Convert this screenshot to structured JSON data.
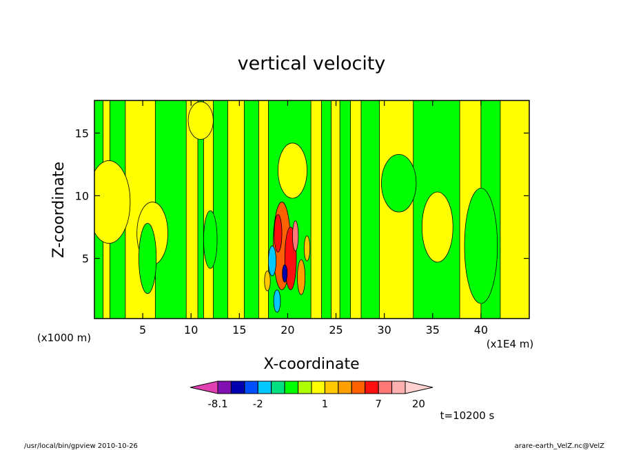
{
  "chart_data": {
    "type": "heatmap",
    "title": "vertical velocity",
    "xlabel": "X-coordinate",
    "ylabel": "Z-coordinate",
    "x_unit_note": "(x1E4 m)",
    "y_unit_note": "(x1000 m)",
    "xlim": [
      0,
      45
    ],
    "ylim": [
      0.2,
      17.6
    ],
    "x_ticks": [
      5,
      10,
      15,
      20,
      25,
      30,
      35,
      40
    ],
    "y_ticks": [
      5,
      10,
      15
    ],
    "colorbar": {
      "levels": [
        -8.1,
        -5,
        -3,
        -2,
        -1,
        -0.5,
        0,
        0.5,
        1,
        2,
        3,
        5,
        7,
        10,
        15,
        20
      ],
      "colors": [
        "#e040b0",
        "#8010b0",
        "#0000b0",
        "#0050ff",
        "#00c8ff",
        "#00e080",
        "#00ff00",
        "#b0ff00",
        "#ffff00",
        "#ffc800",
        "#ffa000",
        "#ff6000",
        "#ff1010",
        "#ff7878",
        "#ffb0b0",
        "#ffd0d0"
      ],
      "tick_labels": [
        "-8.1",
        "-2",
        "1",
        "7",
        "20"
      ],
      "tick_values": [
        -8.1,
        -2,
        1,
        7,
        20
      ]
    },
    "background_color": "#00ff00",
    "yellow_band_columns": [
      {
        "x": 0.9,
        "width": 0.7
      },
      {
        "x": 3.2,
        "width": 3.1
      },
      {
        "x": 9.5,
        "width": 1.2
      },
      {
        "x": 11.3,
        "width": 1.0
      },
      {
        "x": 13.8,
        "width": 1.7
      },
      {
        "x": 17.0,
        "width": 1.0
      },
      {
        "x": 22.4,
        "width": 1.1
      },
      {
        "x": 24.5,
        "width": 0.9
      },
      {
        "x": 26.5,
        "width": 1.1
      },
      {
        "x": 29.5,
        "width": 3.5
      },
      {
        "x": 37.8,
        "width": 2.2
      },
      {
        "x": 42.0,
        "width": 3.0
      }
    ],
    "yellow_blobs": [
      {
        "x": 1.5,
        "y": 9.5,
        "rx": 2.2,
        "ry": 3.3
      },
      {
        "x": 6.0,
        "y": 7.0,
        "rx": 1.6,
        "ry": 2.5
      },
      {
        "x": 11.0,
        "y": 16.0,
        "rx": 1.3,
        "ry": 1.5
      },
      {
        "x": 20.5,
        "y": 12.0,
        "rx": 1.5,
        "ry": 2.2
      },
      {
        "x": 35.5,
        "y": 7.5,
        "rx": 1.6,
        "ry": 2.8
      }
    ],
    "green_blobs": [
      {
        "x": 5.5,
        "y": 5.0,
        "rx": 0.9,
        "ry": 2.8
      },
      {
        "x": 12.0,
        "y": 6.5,
        "rx": 0.7,
        "ry": 2.3
      },
      {
        "x": 31.5,
        "y": 11.0,
        "rx": 1.8,
        "ry": 2.3
      },
      {
        "x": 40.0,
        "y": 6.0,
        "rx": 1.7,
        "ry": 4.6
      }
    ],
    "core_cells": [
      {
        "x": 19.4,
        "y": 6.0,
        "rx": 0.9,
        "ry": 3.5,
        "level": "#ff6000"
      },
      {
        "x": 20.3,
        "y": 5.0,
        "rx": 0.6,
        "ry": 2.5,
        "level": "#ff1010"
      },
      {
        "x": 19.0,
        "y": 7.0,
        "rx": 0.4,
        "ry": 1.5,
        "level": "#ff1010"
      },
      {
        "x": 20.8,
        "y": 6.8,
        "rx": 0.3,
        "ry": 1.2,
        "level": "#ff7878"
      },
      {
        "x": 18.4,
        "y": 4.8,
        "rx": 0.4,
        "ry": 1.2,
        "level": "#00c8ff"
      },
      {
        "x": 18.9,
        "y": 1.6,
        "rx": 0.35,
        "ry": 0.9,
        "level": "#00c8ff"
      },
      {
        "x": 21.4,
        "y": 3.5,
        "rx": 0.4,
        "ry": 1.4,
        "level": "#ffa000"
      },
      {
        "x": 17.9,
        "y": 3.2,
        "rx": 0.3,
        "ry": 0.8,
        "level": "#ffc800"
      },
      {
        "x": 22.0,
        "y": 5.8,
        "rx": 0.3,
        "ry": 1.0,
        "level": "#ffc800"
      },
      {
        "x": 19.7,
        "y": 3.8,
        "rx": 0.25,
        "ry": 0.7,
        "level": "#0000b0"
      }
    ],
    "time_label": "t=10200 s"
  },
  "footer": {
    "left": "/usr/local/bin/gpview  2010-10-26",
    "right": "arare-earth_VelZ.nc@VelZ"
  }
}
